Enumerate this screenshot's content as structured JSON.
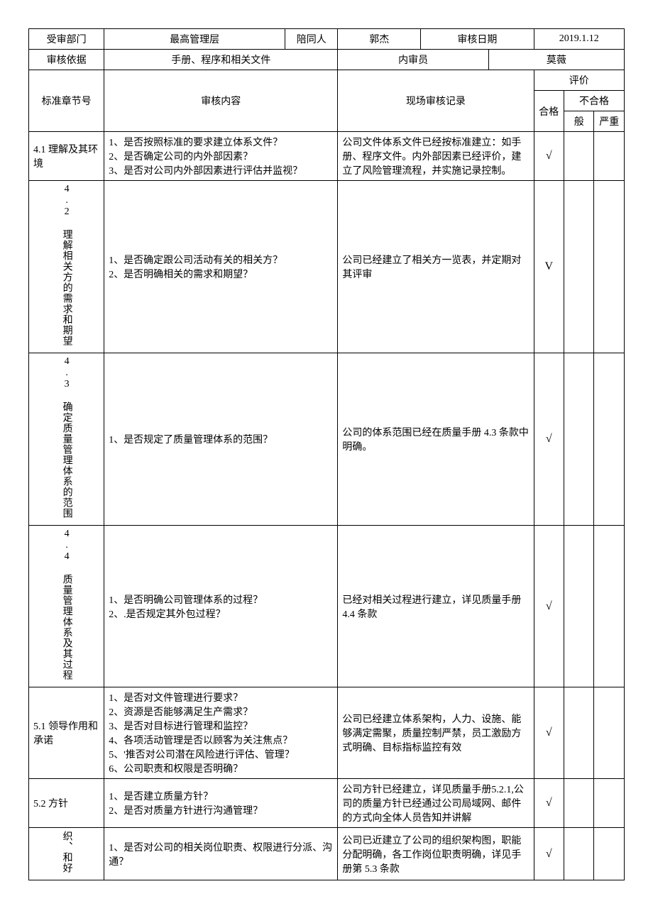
{
  "header": {
    "dept_label": "受审部门",
    "dept_value": "最高管理层",
    "escort_label": "陪同人",
    "escort_value": "郭杰",
    "date_label": "审核日期",
    "date_value": "2019.1.12",
    "basis_label": "审核依据",
    "basis_value": "手册、程序和相关文件",
    "auditor_label": "内审员",
    "auditor_value": "莫薇"
  },
  "columns": {
    "section": "标准章节号",
    "content": "审核内容",
    "record": "现场审核记录",
    "eval": "评价",
    "pass": "合格",
    "fail": "不合格",
    "general": "般",
    "severe": "严重"
  },
  "rows": [
    {
      "section": "4.1 理解及其环境",
      "content": "1、是否按照标准的要求建立体系文件？\n2、是否确定公司的内外部因素？\n3、是否对公司内外部因素进行评估并监视？",
      "record": "公司文件体系文件已经按标准建立：如手册、程序文件。内外部因素已经评价，建立了风险管理流程，并实施记录控制。",
      "pass": "√"
    },
    {
      "section": "4.2 理解相关方的需求和期望",
      "section_vertical": true,
      "content": "1、是否确定跟公司活动有关的相关方？\n2、是否明确相关的需求和期望？",
      "record": "公司已经建立了相关方一览表，并定期对其评审",
      "pass": "V"
    },
    {
      "section": "4.3 确定质量管理体系的范围",
      "section_vertical": true,
      "content": "1、是否规定了质量管理体系的范围？",
      "record": "公司的体系范围已经在质量手册 4.3 条款中明确。",
      "pass": "√"
    },
    {
      "section": "4.4 质量管理体系及其过程",
      "section_vertical": true,
      "content": "1、是否明确公司管理体系的过程？\n2、.是否规定其外包过程？",
      "record": "已经对相关过程进行建立，详见质量手册 4.4 条款",
      "pass": "√"
    },
    {
      "section": "5.1 领导作用和承诺",
      "content": "1、是否对文件管理进行要求？\n2、资源是否能够满足生产需求？\n3、是否对目标进行管理和监控？\n4、各项活动管理是否以顾客为关注焦点？\n5、'推否对公司潜在风险进行评估、管理？\n6、公司职责和权限是否明确？",
      "record": "公司已经建立体系架构，人力、设施、能够满定需聚，质量控制严禁，员工激励方式明确、目标指标监控有效",
      "pass": "√"
    },
    {
      "section": "5.2 方针",
      "content": "1、是否建立质量方针？\n2、是否对质量方针进行沟通管理？",
      "record": "公司方针已经建立，详见质量手册5.2.1,公司的质量方针已经通过公司局域网、邮件的方式向全体人员告知并讲解",
      "pass": "√"
    },
    {
      "section": "织、和好",
      "section_vertical": true,
      "content": "1、是否对公司的相关岗位职责、权限进行分派、沟通？",
      "record": "公司已近建立了公司的组织架构图，职能分配明确，各工作岗位职责明确，详见手册第 5.3 条款",
      "pass": "√"
    }
  ],
  "style": {
    "background": "#ffffff",
    "border_color": "#000000",
    "font_size": 14,
    "check_mark": "√"
  }
}
